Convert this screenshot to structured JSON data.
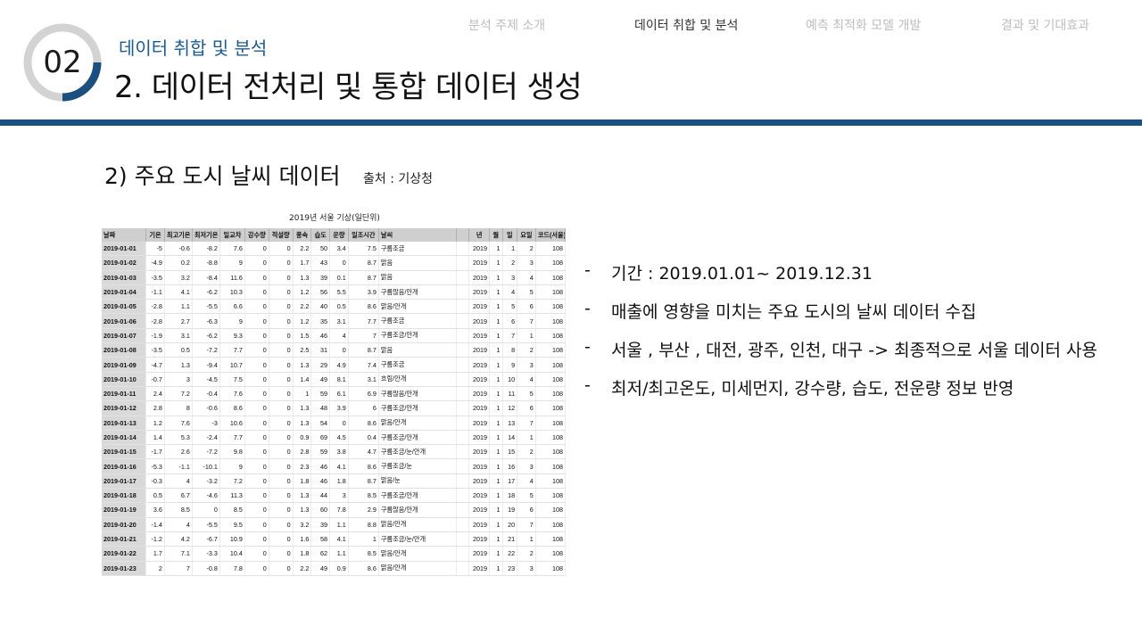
{
  "nav": {
    "tabs": [
      {
        "label": "분석 주제 소개",
        "active": false
      },
      {
        "label": "데이터 취합 및 분석",
        "active": true
      },
      {
        "label": "예측 최적화 모델 개발",
        "active": false
      },
      {
        "label": "결과 및 기대효과",
        "active": false
      }
    ]
  },
  "header": {
    "badge_number": "02",
    "section_label": "데이터 취합 및 분석",
    "title": "2. 데이터 전처리 및 통합 데이터 생성",
    "accent_color": "#1b4f80"
  },
  "content": {
    "heading": "2) 주요 도시 날씨 데이터",
    "source": "출처 : 기상청",
    "table": {
      "title": "2019년 서울 기상(일단위)",
      "columns": [
        "날짜",
        "기온",
        "최고기온",
        "최저기온",
        "일교차",
        "강수량",
        "적설량",
        "풍속",
        "습도",
        "운량",
        "일조시간",
        "날씨",
        "",
        "년",
        "월",
        "일",
        "요일",
        "코드(서울)"
      ],
      "rows": [
        [
          "2019-01-01",
          "-5",
          "-0.6",
          "-8.2",
          "7.6",
          "0",
          "0",
          "2.2",
          "50",
          "3.4",
          "7.5",
          "구름조금",
          "",
          "2019",
          "1",
          "1",
          "2",
          "108"
        ],
        [
          "2019-01-02",
          "-4.9",
          "0.2",
          "-8.8",
          "9",
          "0",
          "0",
          "1.7",
          "43",
          "0",
          "8.7",
          "맑음",
          "",
          "2019",
          "1",
          "2",
          "3",
          "108"
        ],
        [
          "2019-01-03",
          "-3.5",
          "3.2",
          "-8.4",
          "11.6",
          "0",
          "0",
          "1.3",
          "39",
          "0.1",
          "8.7",
          "맑음",
          "",
          "2019",
          "1",
          "3",
          "4",
          "108"
        ],
        [
          "2019-01-04",
          "-1.1",
          "4.1",
          "-6.2",
          "10.3",
          "0",
          "0",
          "1.2",
          "56",
          "5.5",
          "3.9",
          "구름많음/안개",
          "",
          "2019",
          "1",
          "4",
          "5",
          "108"
        ],
        [
          "2019-01-05",
          "-2.8",
          "1.1",
          "-5.5",
          "6.6",
          "0",
          "0",
          "2.2",
          "40",
          "0.5",
          "8.6",
          "맑음/안개",
          "",
          "2019",
          "1",
          "5",
          "6",
          "108"
        ],
        [
          "2019-01-06",
          "-2.8",
          "2.7",
          "-6.3",
          "9",
          "0",
          "0",
          "1.2",
          "35",
          "3.1",
          "7.7",
          "구름조금",
          "",
          "2019",
          "1",
          "6",
          "7",
          "108"
        ],
        [
          "2019-01-07",
          "-1.9",
          "3.1",
          "-6.2",
          "9.3",
          "0",
          "0",
          "1.5",
          "46",
          "4",
          "7",
          "구름조금/안개",
          "",
          "2019",
          "1",
          "7",
          "1",
          "108"
        ],
        [
          "2019-01-08",
          "-3.5",
          "0.5",
          "-7.2",
          "7.7",
          "0",
          "0",
          "2.5",
          "31",
          "0",
          "8.7",
          "맑음",
          "",
          "2019",
          "1",
          "8",
          "2",
          "108"
        ],
        [
          "2019-01-09",
          "-4.7",
          "1.3",
          "-9.4",
          "10.7",
          "0",
          "0",
          "1.3",
          "29",
          "4.9",
          "7.4",
          "구름조금",
          "",
          "2019",
          "1",
          "9",
          "3",
          "108"
        ],
        [
          "2019-01-10",
          "-0.7",
          "3",
          "-4.5",
          "7.5",
          "0",
          "0",
          "1.4",
          "49",
          "8.1",
          "3.1",
          "흐림/안개",
          "",
          "2019",
          "1",
          "10",
          "4",
          "108"
        ],
        [
          "2019-01-11",
          "2.4",
          "7.2",
          "-0.4",
          "7.6",
          "0",
          "0",
          "1",
          "59",
          "6.1",
          "6.9",
          "구름많음/안개",
          "",
          "2019",
          "1",
          "11",
          "5",
          "108"
        ],
        [
          "2019-01-12",
          "2.8",
          "8",
          "-0.6",
          "8.6",
          "0",
          "0",
          "1.3",
          "48",
          "3.9",
          "6",
          "구름조금/안개",
          "",
          "2019",
          "1",
          "12",
          "6",
          "108"
        ],
        [
          "2019-01-13",
          "1.2",
          "7.6",
          "-3",
          "10.6",
          "0",
          "0",
          "1.3",
          "54",
          "0",
          "8.6",
          "맑음/안개",
          "",
          "2019",
          "1",
          "13",
          "7",
          "108"
        ],
        [
          "2019-01-14",
          "1.4",
          "5.3",
          "-2.4",
          "7.7",
          "0",
          "0",
          "0.9",
          "69",
          "4.5",
          "0.4",
          "구름조금/안개",
          "",
          "2019",
          "1",
          "14",
          "1",
          "108"
        ],
        [
          "2019-01-15",
          "-1.7",
          "2.6",
          "-7.2",
          "9.8",
          "0",
          "0",
          "2.8",
          "59",
          "3.8",
          "4.7",
          "구름조금/눈/안개",
          "",
          "2019",
          "1",
          "15",
          "2",
          "108"
        ],
        [
          "2019-01-16",
          "-5.3",
          "-1.1",
          "-10.1",
          "9",
          "0",
          "0",
          "2.3",
          "46",
          "4.1",
          "8.6",
          "구름조금/눈",
          "",
          "2019",
          "1",
          "16",
          "3",
          "108"
        ],
        [
          "2019-01-17",
          "-0.3",
          "4",
          "-3.2",
          "7.2",
          "0",
          "0",
          "1.8",
          "46",
          "1.8",
          "8.7",
          "맑음/눈",
          "",
          "2019",
          "1",
          "17",
          "4",
          "108"
        ],
        [
          "2019-01-18",
          "0.5",
          "6.7",
          "-4.6",
          "11.3",
          "0",
          "0",
          "1.3",
          "44",
          "3",
          "8.5",
          "구름조금/안개",
          "",
          "2019",
          "1",
          "18",
          "5",
          "108"
        ],
        [
          "2019-01-19",
          "3.6",
          "8.5",
          "0",
          "8.5",
          "0",
          "0",
          "1.3",
          "60",
          "7.8",
          "2.9",
          "구름많음/안개",
          "",
          "2019",
          "1",
          "19",
          "6",
          "108"
        ],
        [
          "2019-01-20",
          "-1.4",
          "4",
          "-5.5",
          "9.5",
          "0",
          "0",
          "3.2",
          "39",
          "1.1",
          "8.8",
          "맑음/안개",
          "",
          "2019",
          "1",
          "20",
          "7",
          "108"
        ],
        [
          "2019-01-21",
          "-1.2",
          "4.2",
          "-6.7",
          "10.9",
          "0",
          "0",
          "1.6",
          "58",
          "4.1",
          "1",
          "구름조금/눈/안개",
          "",
          "2019",
          "1",
          "21",
          "1",
          "108"
        ],
        [
          "2019-01-22",
          "1.7",
          "7.1",
          "-3.3",
          "10.4",
          "0",
          "0",
          "1.8",
          "62",
          "1.1",
          "8.5",
          "맑음/안개",
          "",
          "2019",
          "1",
          "22",
          "2",
          "108"
        ],
        [
          "2019-01-23",
          "2",
          "7",
          "-0.8",
          "7.8",
          "0",
          "0",
          "2.2",
          "49",
          "0.9",
          "8.6",
          "맑음/안개",
          "",
          "2019",
          "1",
          "23",
          "3",
          "108"
        ]
      ]
    },
    "bullets": [
      {
        "dash": "-",
        "text": "기간 : 2019.01.01~ 2019.12.31"
      },
      {
        "dash": "-",
        "text": "매출에 영향을 미치는 주요 도시의 날씨 데이터 수집"
      },
      {
        "dash": "-",
        "text": "서울 , 부산 , 대전, 광주, 인천, 대구 -> 최종적으로 서울 데이터 사용"
      },
      {
        "dash": "-",
        "text": "최저/최고온도, 미세먼지, 강수량, 습도, 전운량 정보 반영"
      }
    ]
  }
}
